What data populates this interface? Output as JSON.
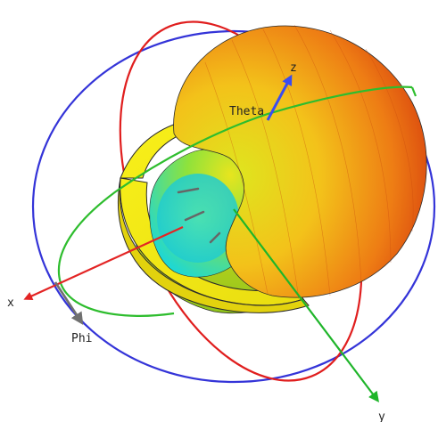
{
  "labels": {
    "x_axis": "x",
    "y_axis": "y",
    "z_axis": "z",
    "theta": "Theta",
    "phi": "Phi"
  },
  "colors": {
    "x_axis": "#e32424",
    "y_axis": "#1fb52a",
    "z_axis": "#3a4cf0",
    "phi_arrow": "#707070",
    "ring_blue": "#3434d8",
    "ring_red": "#e01e1e",
    "ring_green": "#2ebd2e",
    "pattern_hot": "#d81a0a",
    "pattern_mid": "#f2a014",
    "pattern_warm": "#e6e21e",
    "pattern_cool": "#1fd6cf",
    "pattern_disc": "#f7ef12"
  }
}
